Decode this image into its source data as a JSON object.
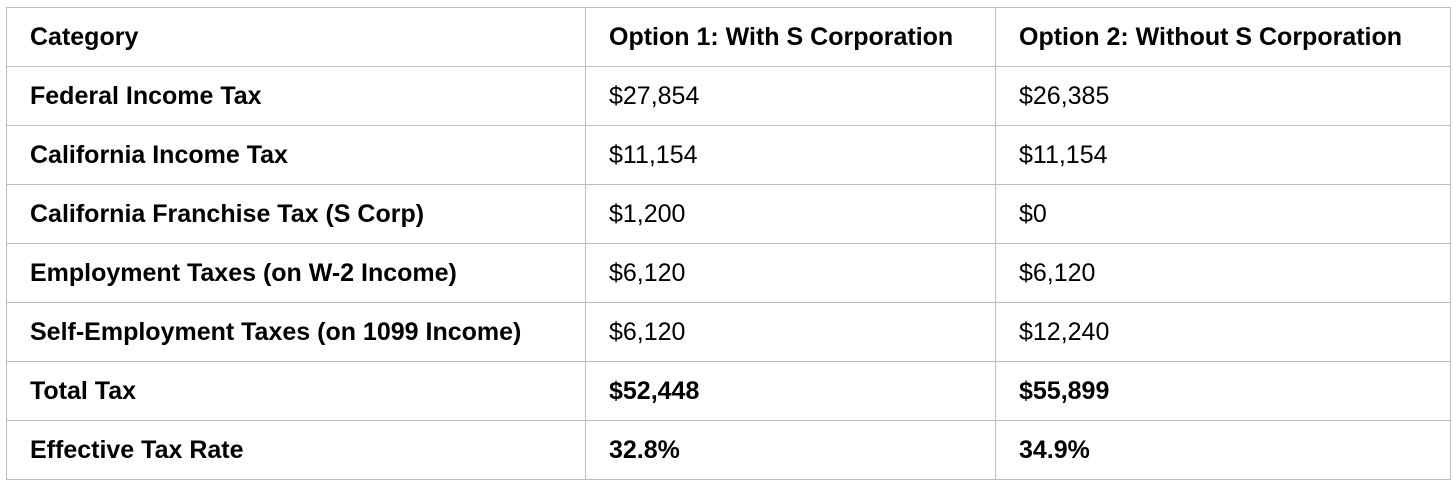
{
  "table": {
    "headers": [
      "Category",
      "Option 1: With S Corporation",
      "Option 2: Without S Corporation"
    ],
    "rows": [
      {
        "category": "Federal Income Tax",
        "option1": "$27,854",
        "option2": "$26,385"
      },
      {
        "category": "California Income Tax",
        "option1": "$11,154",
        "option2": "$11,154"
      },
      {
        "category": "California Franchise Tax (S Corp)",
        "option1": "$1,200",
        "option2": "$0"
      },
      {
        "category": "Employment Taxes (on W-2 Income)",
        "option1": "$6,120",
        "option2": "$6,120"
      },
      {
        "category": "Self-Employment Taxes (on 1099 Income)",
        "option1": "$6,120",
        "option2": "$12,240"
      },
      {
        "category": "Total Tax",
        "option1": "$52,448",
        "option2": "$55,899"
      },
      {
        "category": "Effective Tax Rate",
        "option1": "32.8%",
        "option2": "34.9%"
      }
    ],
    "border_color": "#bdbdbd",
    "text_color": "#000000"
  }
}
